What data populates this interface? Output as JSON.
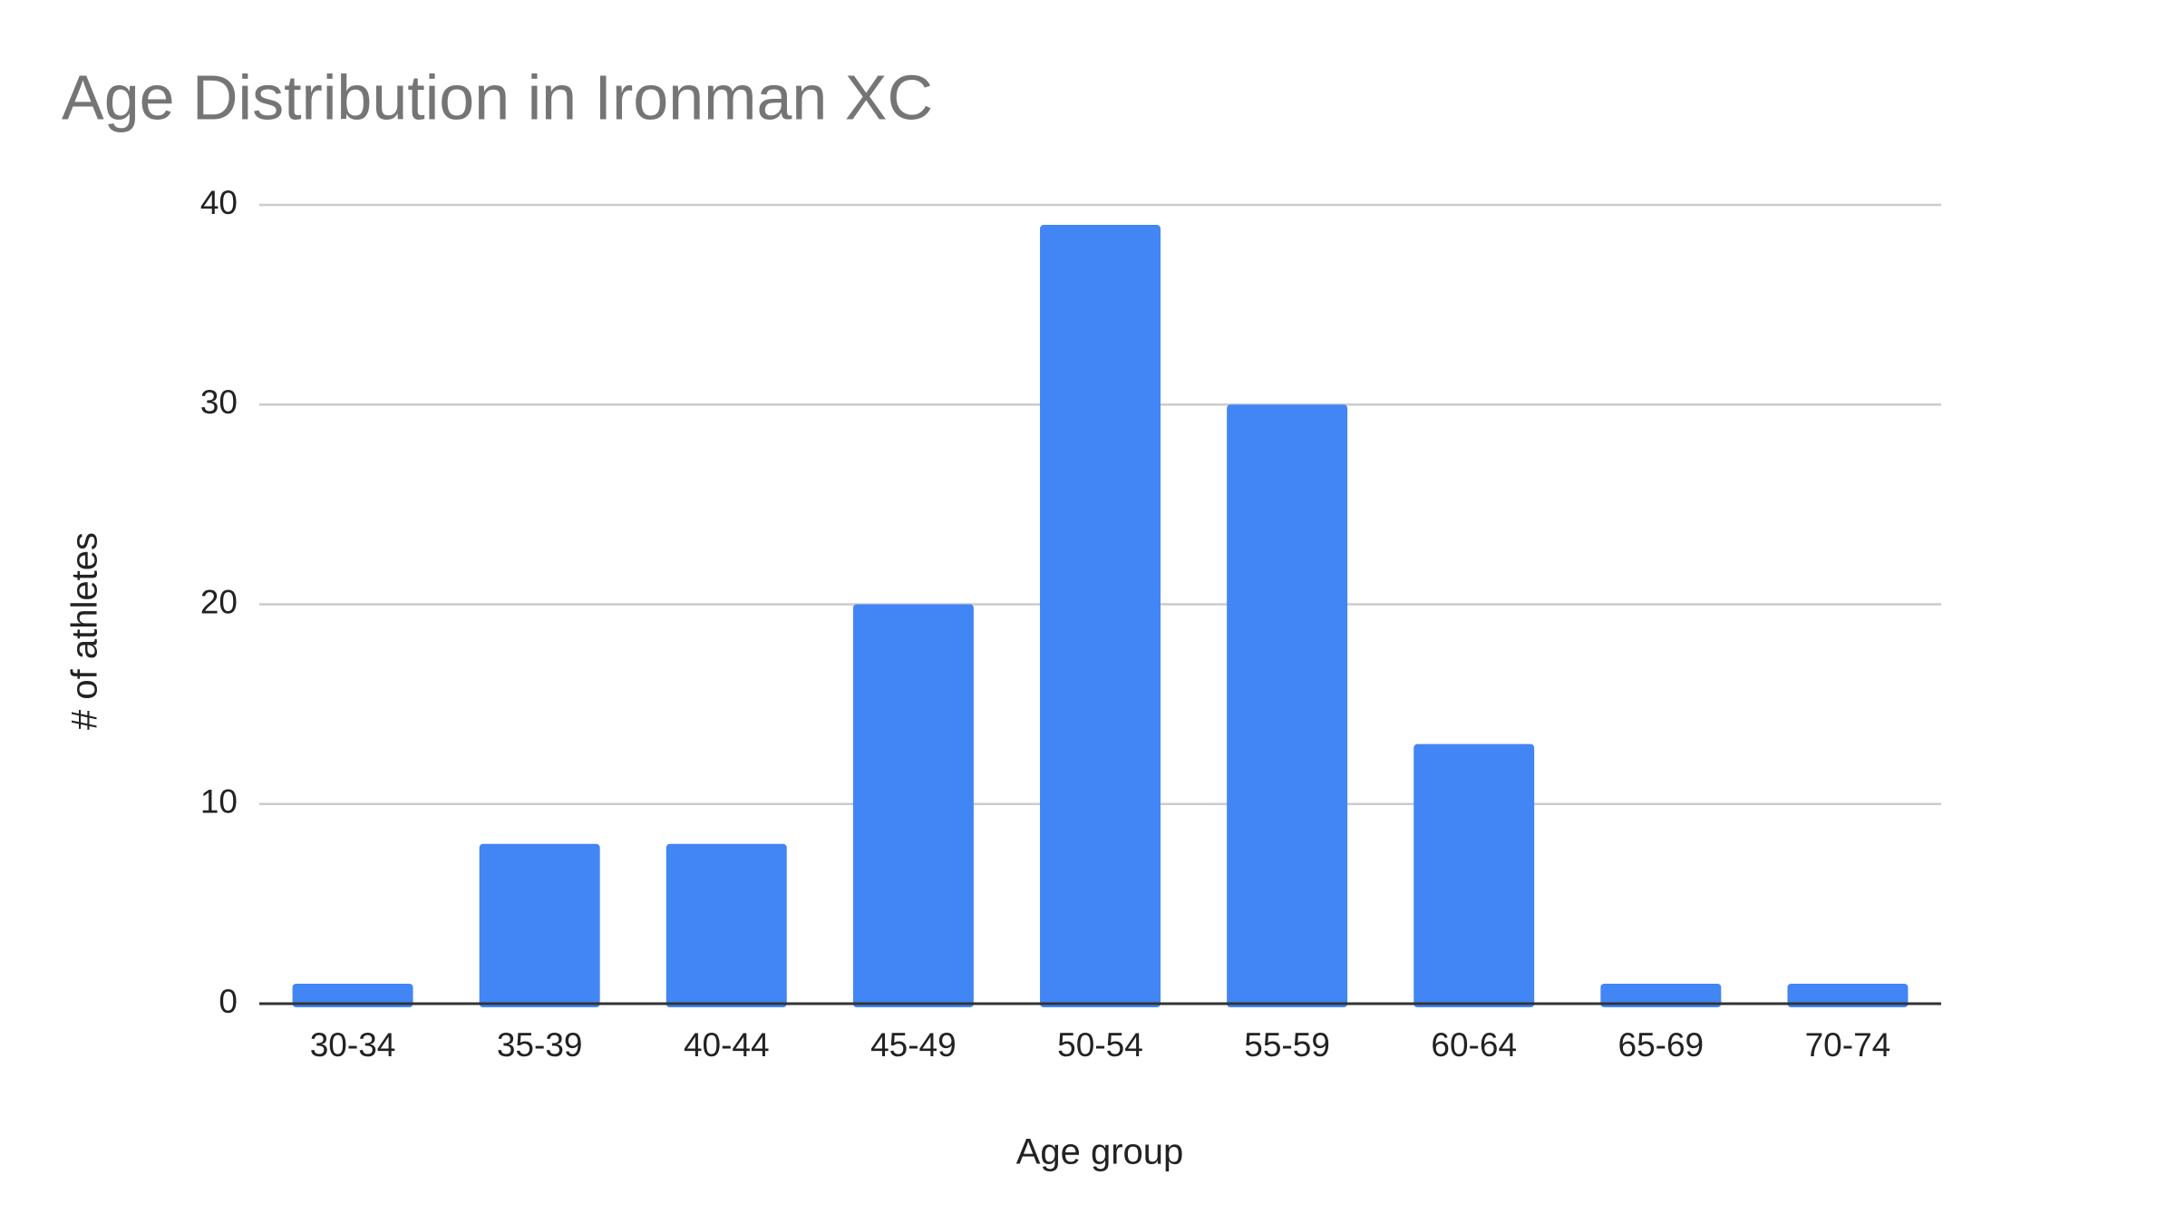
{
  "chart_data": {
    "type": "bar",
    "title": "Age Distribution in Ironman XC",
    "x_label": "Age group",
    "y_label": "# of athletes",
    "categories": [
      "30-34",
      "35-39",
      "40-44",
      "45-49",
      "50-54",
      "55-59",
      "60-64",
      "65-69",
      "70-74"
    ],
    "values": [
      1,
      8,
      8,
      20,
      39,
      30,
      13,
      1,
      1
    ],
    "color": "#4285f4",
    "ylim": [
      0,
      40
    ],
    "yticks": [
      0,
      10,
      20,
      30,
      40
    ],
    "grid": true
  }
}
